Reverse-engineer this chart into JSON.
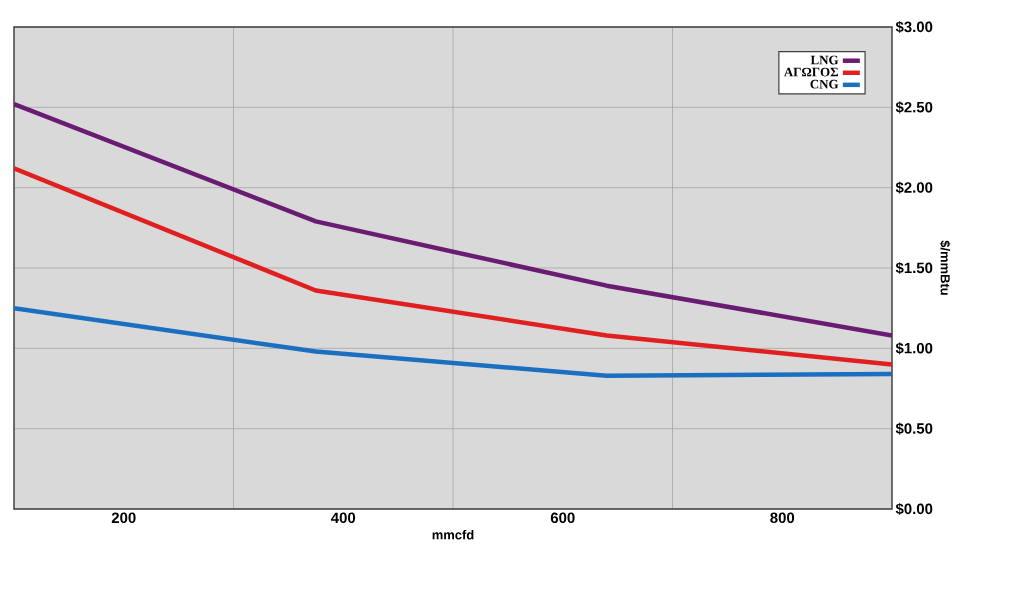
{
  "chart_data": {
    "type": "line",
    "xlabel": "mmcfd",
    "ylabel": "$/mmBtu",
    "x": [
      100,
      375,
      640,
      900
    ],
    "series": [
      {
        "name": "LNG",
        "color": "#6a1b72",
        "values": [
          2.52,
          1.79,
          1.39,
          1.08
        ]
      },
      {
        "name": "ΑΓΩΓΟΣ",
        "color": "#e02020",
        "values": [
          2.12,
          1.36,
          1.08,
          0.9
        ]
      },
      {
        "name": "CNG",
        "color": "#1a6fc0",
        "values": [
          1.25,
          0.98,
          0.83,
          0.84
        ]
      }
    ],
    "xlim": [
      100,
      900
    ],
    "xticks": [
      200,
      {
        "value": 300,
        "label": null
      },
      400,
      {
        "value": 500,
        "label": null
      },
      600,
      {
        "value": 700,
        "label": null
      },
      800
    ],
    "ylim": [
      0,
      3
    ],
    "yticks": [
      {
        "value": 0,
        "label": "$0.00"
      },
      {
        "value": 0.5,
        "label": "$0.50"
      },
      {
        "value": 1,
        "label": "$1.00"
      },
      {
        "value": 1.5,
        "label": "$1.50"
      },
      {
        "value": 2,
        "label": "$2.00"
      },
      {
        "value": 2.5,
        "label": "$2.50"
      },
      {
        "value": 3,
        "label": "$3.00"
      }
    ],
    "grid": true,
    "legend": "top right",
    "line_style": "solid"
  }
}
